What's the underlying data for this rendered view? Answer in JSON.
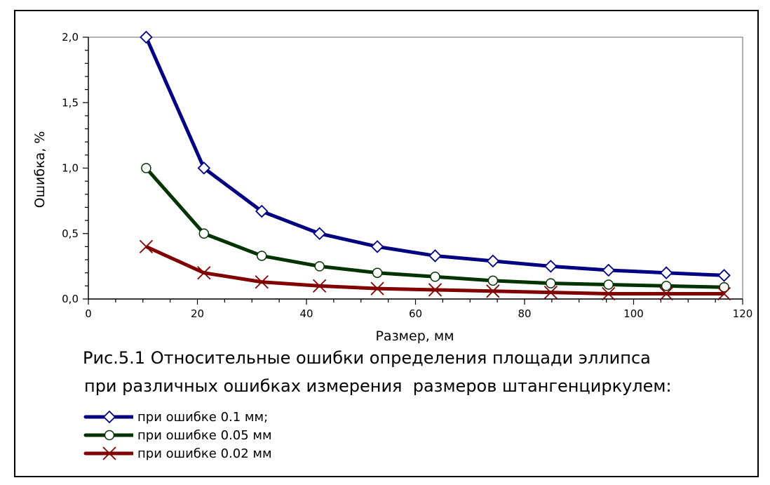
{
  "chart_data": {
    "type": "line",
    "xlabel": "Размер, мм",
    "ylabel": "Ошибка, %",
    "xlim": [
      0,
      120
    ],
    "ylim": [
      0,
      2.0
    ],
    "x_ticks": [
      0,
      20,
      40,
      60,
      80,
      100,
      120
    ],
    "x_tick_labels": [
      "0",
      "20",
      "40",
      "60",
      "80",
      "100",
      "120"
    ],
    "y_ticks": [
      0,
      0.5,
      1.0,
      1.5,
      2.0
    ],
    "y_tick_labels": [
      "0,0",
      "0,5",
      "1,0",
      "1,5",
      "2,0"
    ],
    "grid": false,
    "legend_position": "bottom-left",
    "x": [
      10.6,
      21.2,
      31.8,
      42.4,
      53.0,
      63.6,
      74.2,
      84.8,
      95.4,
      106.0,
      116.6
    ],
    "series": [
      {
        "name": "при ошибке 0.1 мм;",
        "color": "#000080",
        "marker": "diamond",
        "values": [
          2.0,
          1.0,
          0.67,
          0.5,
          0.4,
          0.33,
          0.29,
          0.25,
          0.22,
          0.2,
          0.18
        ]
      },
      {
        "name": "при ошибке 0.05 мм",
        "color": "#003300",
        "marker": "circle",
        "values": [
          1.0,
          0.5,
          0.33,
          0.25,
          0.2,
          0.17,
          0.14,
          0.12,
          0.11,
          0.1,
          0.09
        ]
      },
      {
        "name": "при ошибке 0.02 мм",
        "color": "#800000",
        "marker": "x",
        "values": [
          0.4,
          0.2,
          0.13,
          0.1,
          0.08,
          0.07,
          0.06,
          0.05,
          0.04,
          0.04,
          0.04
        ]
      }
    ]
  },
  "caption": {
    "line1": "Рис.5.1 Относительные ошибки определения площади эллипса",
    "line2": "при различных ошибках измерения  размеров штангенциркулем:"
  }
}
